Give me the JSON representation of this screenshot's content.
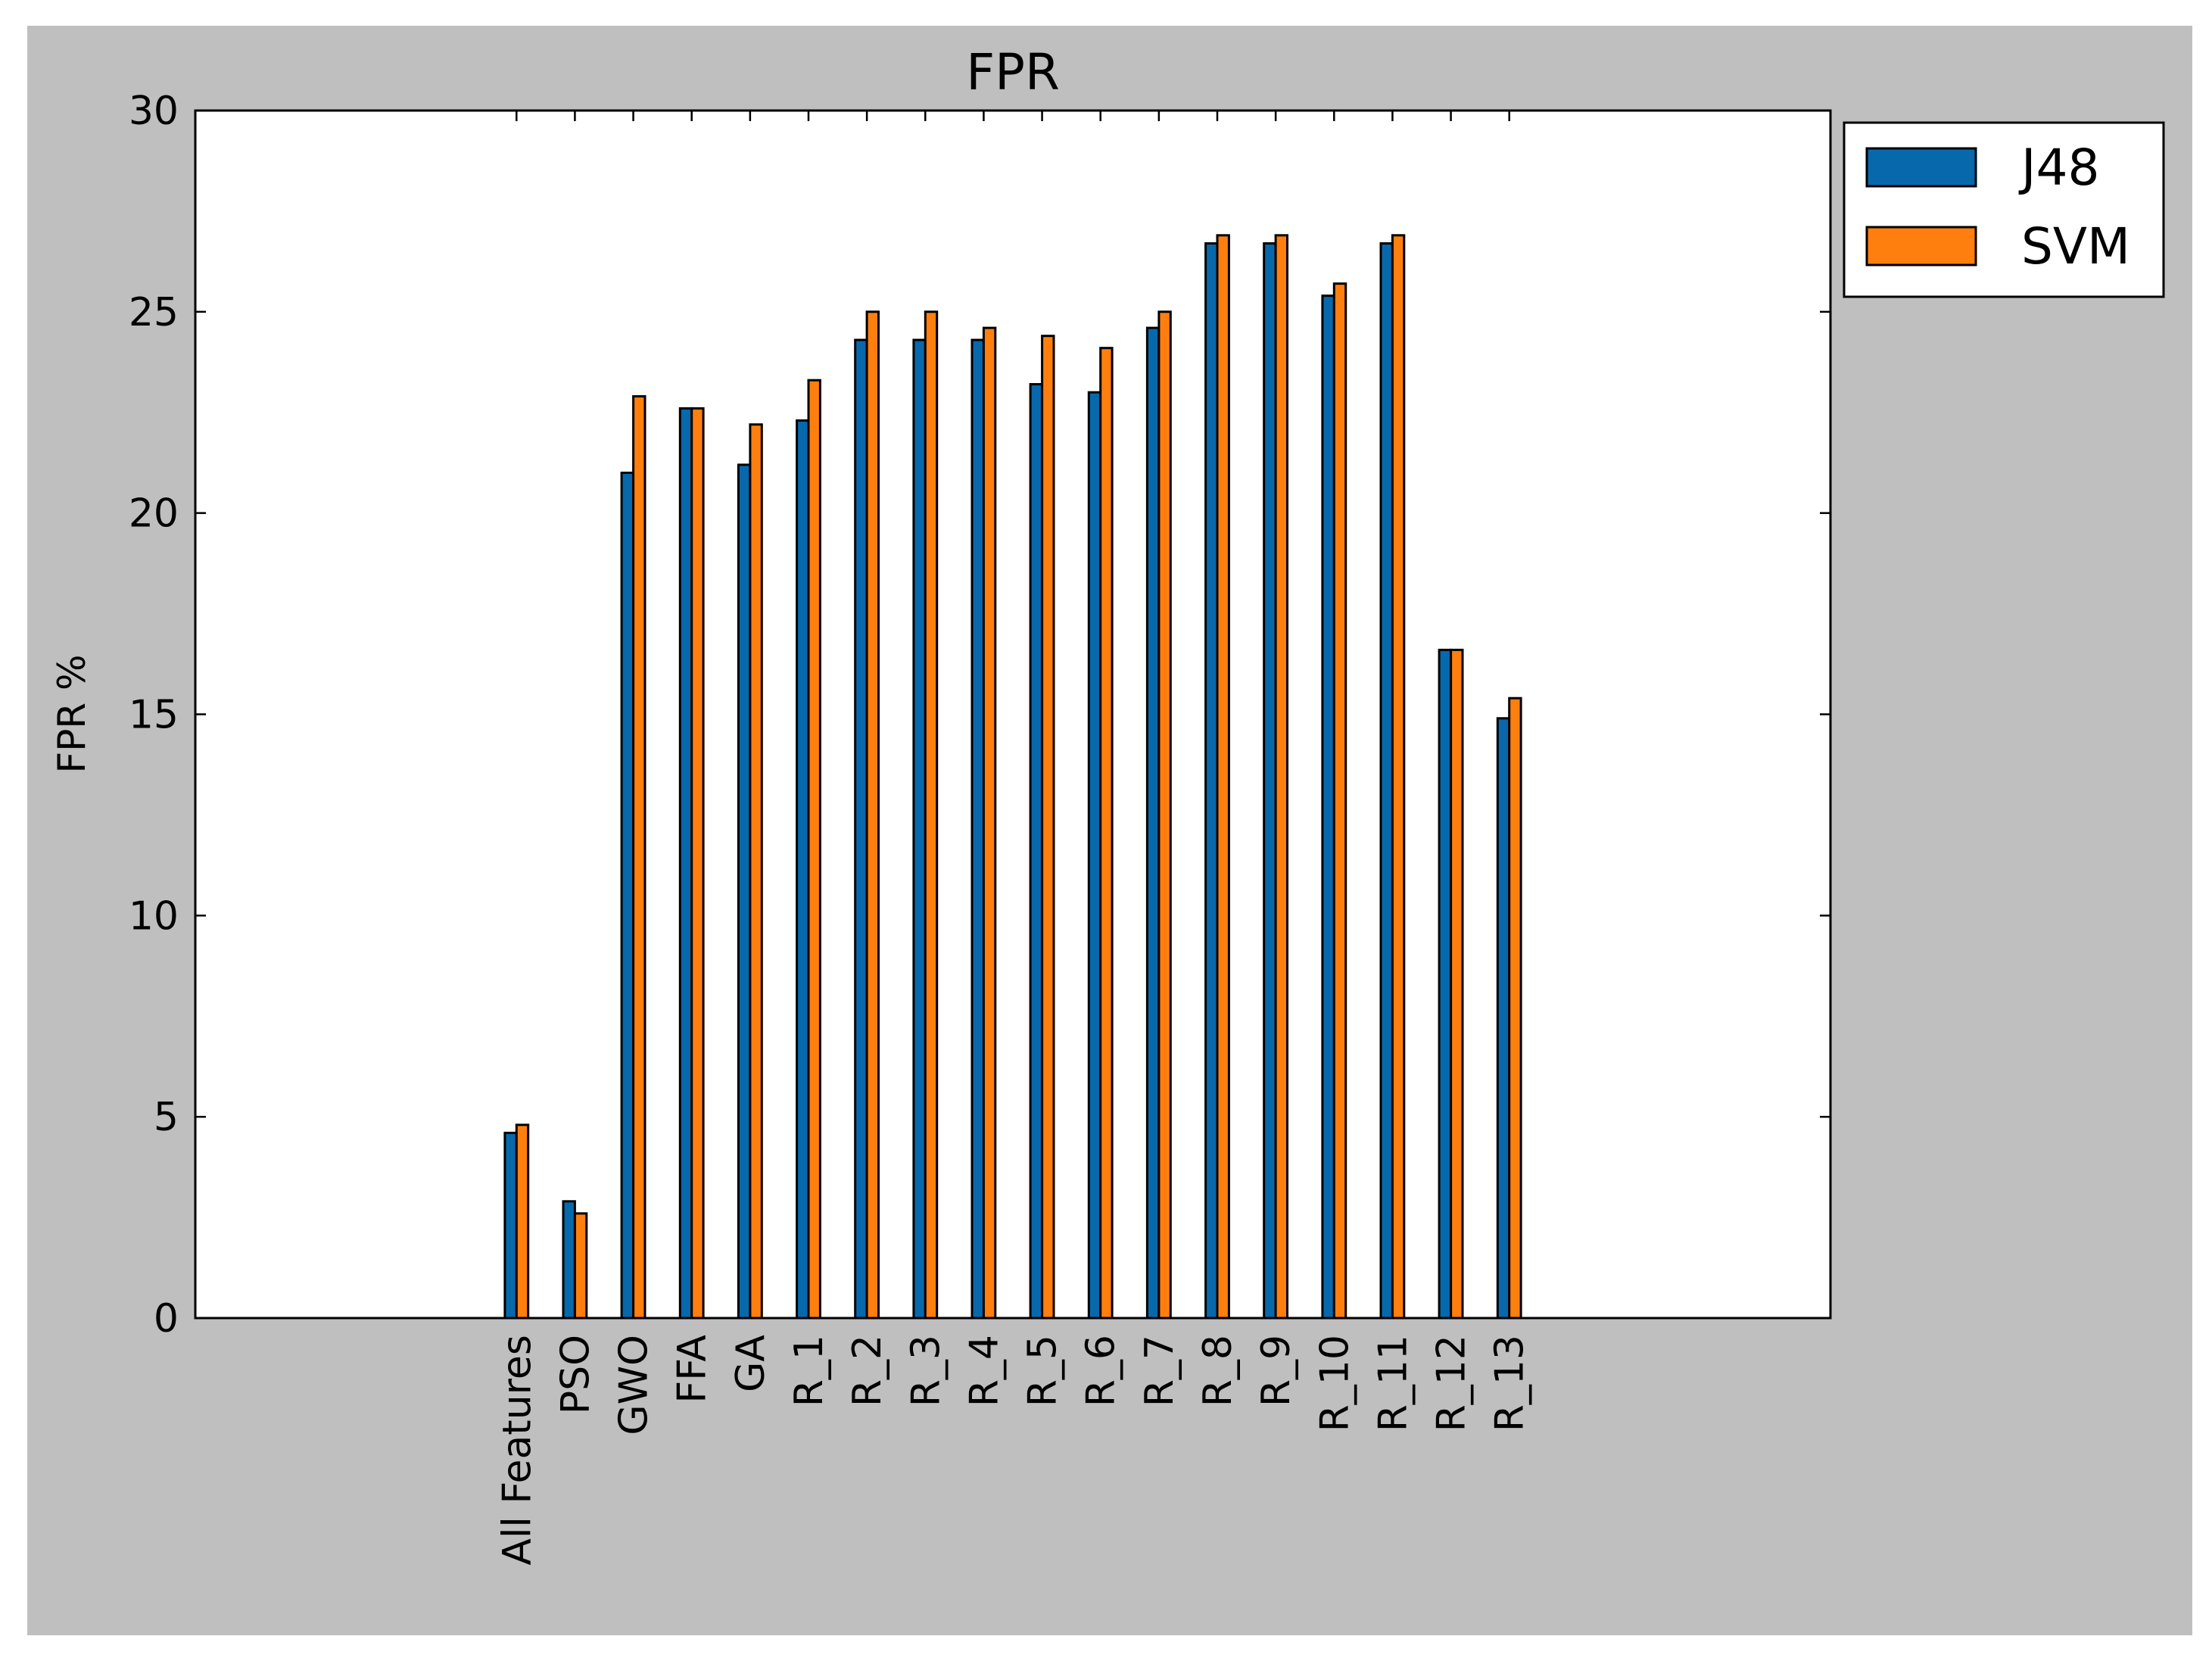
{
  "chart_data": {
    "type": "bar",
    "title": "FPR",
    "xlabel": "",
    "ylabel": "FPR %",
    "ylim": [
      0,
      30
    ],
    "yticks": [
      0,
      5,
      10,
      15,
      20,
      25,
      30
    ],
    "categories": [
      "All Features",
      "PSO",
      "GWO",
      "FFA",
      "GA",
      "R_1",
      "R_2",
      "R_3",
      "R_4",
      "R_5",
      "R_6",
      "R_7",
      "R_8",
      "R_9",
      "R_10",
      "R_11",
      "R_12",
      "R_13"
    ],
    "series": [
      {
        "name": "J48",
        "color": "#0868ac",
        "values": [
          4.6,
          2.9,
          21.0,
          22.6,
          21.2,
          22.3,
          24.3,
          24.3,
          24.3,
          23.2,
          23.0,
          24.6,
          26.7,
          26.7,
          25.4,
          26.7,
          16.6,
          14.9
        ]
      },
      {
        "name": "SVM",
        "color": "#ff7f0e",
        "values": [
          4.8,
          2.6,
          22.9,
          22.6,
          22.2,
          23.3,
          25.0,
          25.0,
          24.6,
          24.4,
          24.1,
          25.0,
          26.9,
          26.9,
          25.7,
          26.9,
          16.6,
          15.4
        ]
      }
    ],
    "grid": false,
    "legend": "top-right",
    "background_color": "#bfbfbf",
    "plot_area_color": "#ffffff"
  }
}
